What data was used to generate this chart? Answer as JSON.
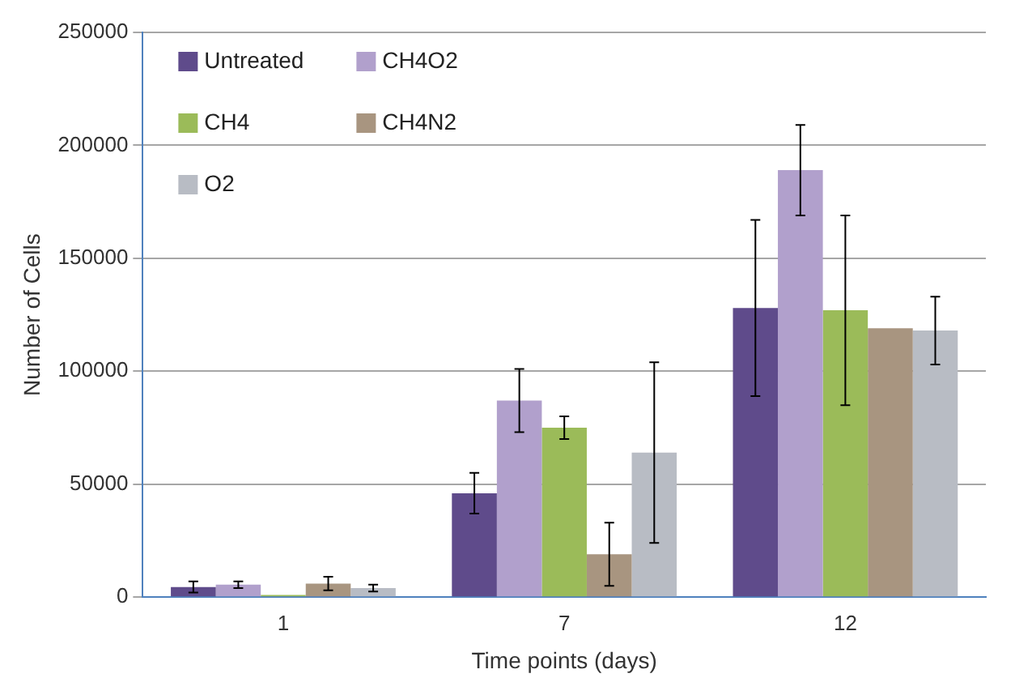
{
  "chart_data": {
    "type": "bar",
    "xlabel": "Time points (days)",
    "ylabel": "Number of Cells",
    "categories": [
      "1",
      "7",
      "12"
    ],
    "series": [
      {
        "name": "Untreated",
        "color": "#5f4b8b",
        "values": [
          4500,
          46000,
          128000
        ],
        "errors": [
          2500,
          9000,
          39000
        ]
      },
      {
        "name": "CH4O2",
        "color": "#b1a0cc",
        "values": [
          5500,
          87000,
          189000
        ],
        "errors": [
          1500,
          14000,
          20000
        ]
      },
      {
        "name": "CH4",
        "color": "#9bbb59",
        "values": [
          1000,
          75000,
          127000
        ],
        "errors": [
          null,
          5000,
          42000
        ]
      },
      {
        "name": "CH4N2",
        "color": "#a89580",
        "values": [
          6000,
          19000,
          119000
        ],
        "errors": [
          3000,
          14000,
          null
        ]
      },
      {
        "name": "O2",
        "color": "#b8bcc4",
        "values": [
          4000,
          64000,
          118000
        ],
        "errors": [
          1500,
          40000,
          15000
        ]
      }
    ],
    "ylim": [
      0,
      250000
    ],
    "yticks": [
      0,
      50000,
      100000,
      150000,
      200000,
      250000
    ],
    "grid": "y",
    "legend": "top left"
  }
}
